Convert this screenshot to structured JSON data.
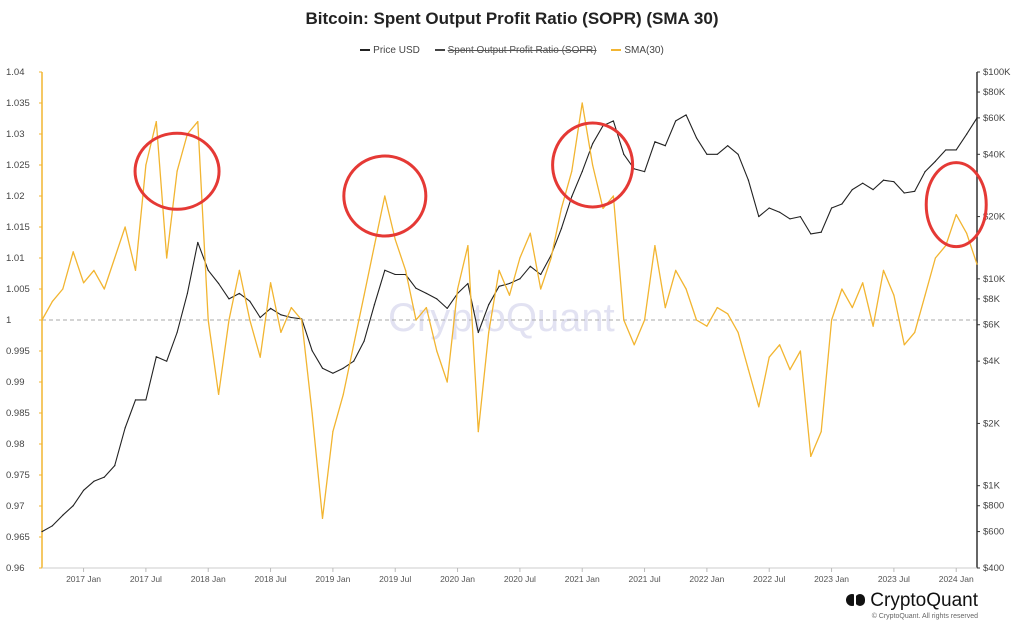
{
  "chart_data": {
    "type": "line",
    "title": "Bitcoin: Spent Output Profit Ratio (SOPR) (SMA 30)",
    "x_ticks": [
      "2017 Jan",
      "2017 Jul",
      "2018 Jan",
      "2018 Jul",
      "2019 Jan",
      "2019 Jul",
      "2020 Jan",
      "2020 Jul",
      "2021 Jan",
      "2021 Jul",
      "2022 Jan",
      "2022 Jul",
      "2023 Jan",
      "2023 Jul",
      "2024 Jan"
    ],
    "x_range": [
      "2016-09",
      "2024-03"
    ],
    "y_left": {
      "label": "",
      "ticks": [
        "0.96",
        "0.965",
        "0.97",
        "0.975",
        "0.98",
        "0.985",
        "0.99",
        "0.995",
        "1",
        "1.005",
        "1.01",
        "1.015",
        "1.02",
        "1.025",
        "1.03",
        "1.035",
        "1.04"
      ],
      "range": [
        0.96,
        1.04
      ]
    },
    "y_right": {
      "label": "",
      "scale": "log",
      "ticks": [
        "$100K",
        "$80K",
        "$60K",
        "$40K",
        "$20K",
        "$10K",
        "$8K",
        "$6K",
        "$4K",
        "$2K",
        "$1K",
        "$800",
        "$600",
        "$400"
      ],
      "range": [
        400,
        100000
      ]
    },
    "reference_line": {
      "axis": "left",
      "value": 1,
      "style": "dashed"
    },
    "legend": [
      "Price USD",
      "Spent Output Profit Ratio (SOPR)",
      "SMA(30)"
    ],
    "legend_hidden": [
      "Spent Output Profit Ratio (SOPR)"
    ],
    "series": [
      {
        "name": "Price USD",
        "axis": "right",
        "color": "#222222",
        "points": [
          [
            "2016-09",
            600
          ],
          [
            "2016-10",
            640
          ],
          [
            "2016-11",
            720
          ],
          [
            "2016-12",
            800
          ],
          [
            "2017-01",
            950
          ],
          [
            "2017-02",
            1050
          ],
          [
            "2017-03",
            1100
          ],
          [
            "2017-04",
            1250
          ],
          [
            "2017-05",
            1900
          ],
          [
            "2017-06",
            2600
          ],
          [
            "2017-07",
            2600
          ],
          [
            "2017-08",
            4200
          ],
          [
            "2017-09",
            4000
          ],
          [
            "2017-10",
            5500
          ],
          [
            "2017-11",
            8500
          ],
          [
            "2017-12",
            15000
          ],
          [
            "2018-01",
            11000
          ],
          [
            "2018-02",
            9500
          ],
          [
            "2018-03",
            8000
          ],
          [
            "2018-04",
            8500
          ],
          [
            "2018-05",
            7800
          ],
          [
            "2018-06",
            6500
          ],
          [
            "2018-07",
            7200
          ],
          [
            "2018-08",
            6700
          ],
          [
            "2018-09",
            6500
          ],
          [
            "2018-10",
            6400
          ],
          [
            "2018-11",
            4500
          ],
          [
            "2018-12",
            3700
          ],
          [
            "2019-01",
            3500
          ],
          [
            "2019-02",
            3700
          ],
          [
            "2019-03",
            4000
          ],
          [
            "2019-04",
            5000
          ],
          [
            "2019-05",
            7500
          ],
          [
            "2019-06",
            11000
          ],
          [
            "2019-07",
            10500
          ],
          [
            "2019-08",
            10500
          ],
          [
            "2019-09",
            9000
          ],
          [
            "2019-10",
            8500
          ],
          [
            "2019-11",
            8000
          ],
          [
            "2019-12",
            7200
          ],
          [
            "2020-01",
            8500
          ],
          [
            "2020-02",
            9500
          ],
          [
            "2020-03",
            5500
          ],
          [
            "2020-04",
            7500
          ],
          [
            "2020-05",
            9200
          ],
          [
            "2020-06",
            9500
          ],
          [
            "2020-07",
            10000
          ],
          [
            "2020-08",
            11500
          ],
          [
            "2020-09",
            10500
          ],
          [
            "2020-10",
            13000
          ],
          [
            "2020-11",
            17500
          ],
          [
            "2020-12",
            25000
          ],
          [
            "2021-01",
            33000
          ],
          [
            "2021-02",
            45000
          ],
          [
            "2021-03",
            55000
          ],
          [
            "2021-04",
            58000
          ],
          [
            "2021-05",
            40000
          ],
          [
            "2021-06",
            34000
          ],
          [
            "2021-07",
            33000
          ],
          [
            "2021-08",
            46000
          ],
          [
            "2021-09",
            44000
          ],
          [
            "2021-10",
            58000
          ],
          [
            "2021-11",
            62000
          ],
          [
            "2021-12",
            48000
          ],
          [
            "2022-01",
            40000
          ],
          [
            "2022-02",
            40000
          ],
          [
            "2022-03",
            44000
          ],
          [
            "2022-04",
            40000
          ],
          [
            "2022-05",
            30000
          ],
          [
            "2022-06",
            20000
          ],
          [
            "2022-07",
            22000
          ],
          [
            "2022-08",
            21000
          ],
          [
            "2022-09",
            19500
          ],
          [
            "2022-10",
            20000
          ],
          [
            "2022-11",
            16500
          ],
          [
            "2022-12",
            16800
          ],
          [
            "2023-01",
            22000
          ],
          [
            "2023-02",
            23000
          ],
          [
            "2023-03",
            27000
          ],
          [
            "2023-04",
            29000
          ],
          [
            "2023-05",
            27000
          ],
          [
            "2023-06",
            30000
          ],
          [
            "2023-07",
            29500
          ],
          [
            "2023-08",
            26000
          ],
          [
            "2023-09",
            26500
          ],
          [
            "2023-10",
            33000
          ],
          [
            "2023-11",
            37000
          ],
          [
            "2023-12",
            42000
          ],
          [
            "2024-01",
            42000
          ],
          [
            "2024-02",
            50000
          ],
          [
            "2024-03",
            60000
          ]
        ]
      },
      {
        "name": "SMA(30)",
        "axis": "left",
        "color": "#f2b531",
        "points": [
          [
            "2016-09",
            1.0
          ],
          [
            "2016-10",
            1.003
          ],
          [
            "2016-11",
            1.005
          ],
          [
            "2016-12",
            1.011
          ],
          [
            "2017-01",
            1.006
          ],
          [
            "2017-02",
            1.008
          ],
          [
            "2017-03",
            1.005
          ],
          [
            "2017-04",
            1.01
          ],
          [
            "2017-05",
            1.015
          ],
          [
            "2017-06",
            1.008
          ],
          [
            "2017-07",
            1.025
          ],
          [
            "2017-08",
            1.032
          ],
          [
            "2017-09",
            1.01
          ],
          [
            "2017-10",
            1.024
          ],
          [
            "2017-11",
            1.03
          ],
          [
            "2017-12",
            1.032
          ],
          [
            "2018-01",
            1.0
          ],
          [
            "2018-02",
            0.988
          ],
          [
            "2018-03",
            1.0
          ],
          [
            "2018-04",
            1.008
          ],
          [
            "2018-05",
            1.0
          ],
          [
            "2018-06",
            0.994
          ],
          [
            "2018-07",
            1.006
          ],
          [
            "2018-08",
            0.998
          ],
          [
            "2018-09",
            1.002
          ],
          [
            "2018-10",
            1.0
          ],
          [
            "2018-11",
            0.985
          ],
          [
            "2018-12",
            0.968
          ],
          [
            "2019-01",
            0.982
          ],
          [
            "2019-02",
            0.988
          ],
          [
            "2019-03",
            0.996
          ],
          [
            "2019-04",
            1.004
          ],
          [
            "2019-05",
            1.012
          ],
          [
            "2019-06",
            1.02
          ],
          [
            "2019-07",
            1.013
          ],
          [
            "2019-08",
            1.008
          ],
          [
            "2019-09",
            1.0
          ],
          [
            "2019-10",
            1.002
          ],
          [
            "2019-11",
            0.995
          ],
          [
            "2019-12",
            0.99
          ],
          [
            "2020-01",
            1.005
          ],
          [
            "2020-02",
            1.012
          ],
          [
            "2020-03",
            0.982
          ],
          [
            "2020-04",
            0.998
          ],
          [
            "2020-05",
            1.008
          ],
          [
            "2020-06",
            1.004
          ],
          [
            "2020-07",
            1.01
          ],
          [
            "2020-08",
            1.014
          ],
          [
            "2020-09",
            1.005
          ],
          [
            "2020-10",
            1.01
          ],
          [
            "2020-11",
            1.018
          ],
          [
            "2020-12",
            1.024
          ],
          [
            "2021-01",
            1.035
          ],
          [
            "2021-02",
            1.025
          ],
          [
            "2021-03",
            1.018
          ],
          [
            "2021-04",
            1.02
          ],
          [
            "2021-05",
            1.0
          ],
          [
            "2021-06",
            0.996
          ],
          [
            "2021-07",
            1.0
          ],
          [
            "2021-08",
            1.012
          ],
          [
            "2021-09",
            1.002
          ],
          [
            "2021-10",
            1.008
          ],
          [
            "2021-11",
            1.005
          ],
          [
            "2021-12",
            1.0
          ],
          [
            "2022-01",
            0.999
          ],
          [
            "2022-02",
            1.002
          ],
          [
            "2022-03",
            1.001
          ],
          [
            "2022-04",
            0.998
          ],
          [
            "2022-05",
            0.992
          ],
          [
            "2022-06",
            0.986
          ],
          [
            "2022-07",
            0.994
          ],
          [
            "2022-08",
            0.996
          ],
          [
            "2022-09",
            0.992
          ],
          [
            "2022-10",
            0.995
          ],
          [
            "2022-11",
            0.978
          ],
          [
            "2022-12",
            0.982
          ],
          [
            "2023-01",
            1.0
          ],
          [
            "2023-02",
            1.005
          ],
          [
            "2023-03",
            1.002
          ],
          [
            "2023-04",
            1.006
          ],
          [
            "2023-05",
            0.999
          ],
          [
            "2023-06",
            1.008
          ],
          [
            "2023-07",
            1.004
          ],
          [
            "2023-08",
            0.996
          ],
          [
            "2023-09",
            0.998
          ],
          [
            "2023-10",
            1.004
          ],
          [
            "2023-11",
            1.01
          ],
          [
            "2023-12",
            1.012
          ],
          [
            "2024-01",
            1.017
          ],
          [
            "2024-02",
            1.014
          ],
          [
            "2024-03",
            1.009
          ]
        ]
      }
    ],
    "annotations": [
      {
        "type": "circle",
        "color": "#e53935",
        "around": "2017-08 to 2017-12 peak"
      },
      {
        "type": "circle",
        "color": "#e53935",
        "around": "2019-06 peak"
      },
      {
        "type": "circle",
        "color": "#e53935",
        "around": "2021-01 peak"
      },
      {
        "type": "circle",
        "color": "#e53935",
        "around": "2024-01 peak"
      }
    ]
  },
  "watermark": "CryptoQuant",
  "brand": "CryptoQuant",
  "copyright": "© CryptoQuant. All rights reserved"
}
